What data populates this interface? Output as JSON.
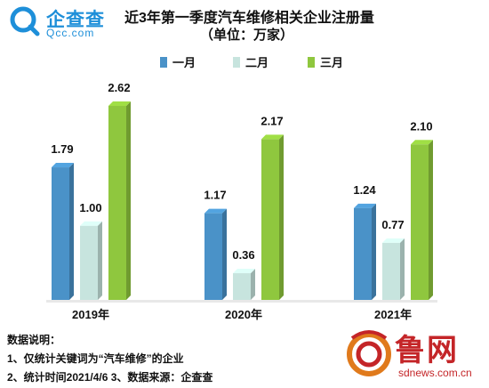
{
  "logo": {
    "name": "企查查",
    "domain": "Qcc.com"
  },
  "chart_data": {
    "type": "bar",
    "title": "近3年第一季度汽车维修相关企业注册量",
    "subtitle": "（单位：万家）",
    "categories": [
      "2019年",
      "2020年",
      "2021年"
    ],
    "series": [
      {
        "name": "一月",
        "values": [
          1.79,
          1.17,
          1.24
        ],
        "color": "#4a92c8"
      },
      {
        "name": "二月",
        "values": [
          1.0,
          0.36,
          0.77
        ],
        "color": "#c7e4de"
      },
      {
        "name": "三月",
        "values": [
          2.62,
          2.17,
          2.1
        ],
        "color": "#8fc73e"
      }
    ],
    "ylim": [
      0,
      2.8
    ],
    "grid": false,
    "legend": "top-center",
    "style": "3d-column"
  },
  "notes": {
    "heading": "数据说明：",
    "line1": "1、仅统计关键词为“汽车维修”的企业",
    "line2": "2、统计时间2021/4/6   3、数据来源：企查查"
  },
  "brand": {
    "name": "鲁网",
    "domain": "sdnews.com.cn"
  }
}
